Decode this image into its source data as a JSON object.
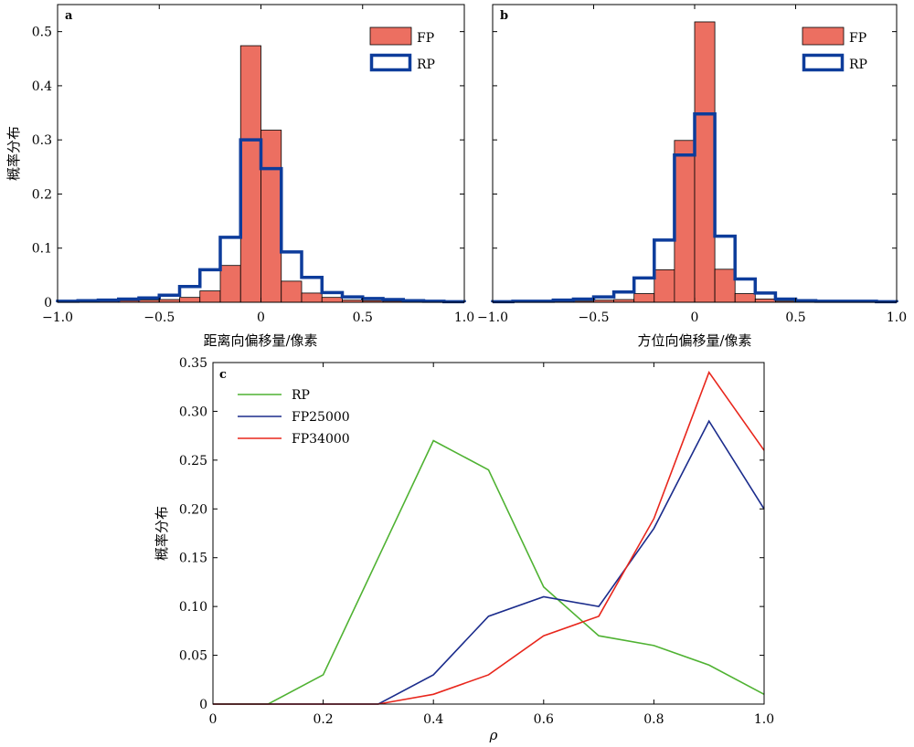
{
  "chart_data": [
    {
      "type": "bar",
      "panel_label": "a",
      "xlabel": "距离向偏移量/像素",
      "ylabel": "概率分布",
      "xlim": [
        -1.0,
        1.0
      ],
      "ylim": [
        0,
        0.55
      ],
      "xticks": [
        -1.0,
        -0.5,
        0,
        0.5,
        1.0
      ],
      "xtick_labels": [
        "−1.0",
        "−0.5",
        "0",
        "0.5",
        "1.0"
      ],
      "yticks": [
        0,
        0.1,
        0.2,
        0.3,
        0.4,
        0.5
      ],
      "ytick_labels": [
        "0",
        "0.1",
        "0.2",
        "0.3",
        "0.4",
        "0.5"
      ],
      "bin_edges": [
        -1.0,
        -0.9,
        -0.8,
        -0.7,
        -0.6,
        -0.5,
        -0.4,
        -0.3,
        -0.2,
        -0.1,
        0.0,
        0.1,
        0.2,
        0.3,
        0.4,
        0.5,
        0.6,
        0.7,
        0.8,
        0.9,
        1.0
      ],
      "series": [
        {
          "name": "FP",
          "style": "bar",
          "color": "#EC6F61",
          "values": [
            0.002,
            0.002,
            0.003,
            0.003,
            0.004,
            0.005,
            0.009,
            0.021,
            0.068,
            0.474,
            0.318,
            0.039,
            0.017,
            0.009,
            0.004,
            0.003,
            0.002,
            0.002,
            0.002,
            0.001
          ]
        },
        {
          "name": "RP",
          "style": "step",
          "color": "#0D3C9B",
          "values": [
            0.002,
            0.003,
            0.004,
            0.006,
            0.008,
            0.013,
            0.029,
            0.06,
            0.12,
            0.3,
            0.247,
            0.093,
            0.046,
            0.018,
            0.01,
            0.007,
            0.005,
            0.003,
            0.002,
            0.001
          ]
        }
      ],
      "legend": "top-right",
      "grid": false
    },
    {
      "type": "bar",
      "panel_label": "b",
      "xlabel": "方位向偏移量/像素",
      "ylabel": "",
      "xlim": [
        -1.0,
        1.0
      ],
      "ylim": [
        0,
        0.55
      ],
      "xticks": [
        -1.0,
        -0.5,
        0,
        0.5,
        1.0
      ],
      "xtick_labels": [
        "−1.0",
        "−0.5",
        "0",
        "0.5",
        "1.0"
      ],
      "bin_edges": [
        -1.0,
        -0.9,
        -0.8,
        -0.7,
        -0.6,
        -0.5,
        -0.4,
        -0.3,
        -0.2,
        -0.1,
        0.0,
        0.1,
        0.2,
        0.3,
        0.4,
        0.5,
        0.6,
        0.7,
        0.8,
        0.9,
        1.0
      ],
      "series": [
        {
          "name": "FP",
          "style": "bar",
          "color": "#EC6F61",
          "values": [
            0.001,
            0.001,
            0.001,
            0.002,
            0.002,
            0.004,
            0.005,
            0.016,
            0.06,
            0.299,
            0.518,
            0.061,
            0.016,
            0.006,
            0.002,
            0.001,
            0.001,
            0.001,
            0.001,
            0.001
          ]
        },
        {
          "name": "RP",
          "style": "step",
          "color": "#0D3C9B",
          "values": [
            0.001,
            0.002,
            0.002,
            0.004,
            0.006,
            0.01,
            0.019,
            0.045,
            0.115,
            0.272,
            0.348,
            0.122,
            0.043,
            0.017,
            0.006,
            0.003,
            0.002,
            0.002,
            0.002,
            0.001
          ]
        }
      ],
      "legend": "top-right",
      "grid": false
    },
    {
      "type": "line",
      "panel_label": "c",
      "xlabel": "ρ",
      "ylabel": "概率分布",
      "xlim": [
        0,
        1.0
      ],
      "ylim": [
        0,
        0.35
      ],
      "xticks": [
        0,
        0.2,
        0.4,
        0.6,
        0.8,
        1.0
      ],
      "xtick_labels": [
        "0",
        "0.2",
        "0.4",
        "0.6",
        "0.8",
        "1.0"
      ],
      "yticks": [
        0,
        0.05,
        0.1,
        0.15,
        0.2,
        0.25,
        0.3,
        0.35
      ],
      "ytick_labels": [
        "0",
        "0.05",
        "0.10",
        "0.15",
        "0.20",
        "0.25",
        "0.30",
        "0.35"
      ],
      "x": [
        0,
        0.1,
        0.2,
        0.3,
        0.4,
        0.5,
        0.6,
        0.7,
        0.8,
        0.9,
        1.0
      ],
      "series": [
        {
          "name": "RP",
          "color": "#4FB232",
          "values": [
            0,
            0,
            0.03,
            0.15,
            0.27,
            0.24,
            0.12,
            0.07,
            0.06,
            0.04,
            0.01
          ]
        },
        {
          "name": "FP25000",
          "color": "#1B2C8C",
          "values": [
            0,
            0,
            0,
            0,
            0.03,
            0.09,
            0.11,
            0.1,
            0.18,
            0.29,
            0.2
          ]
        },
        {
          "name": "FP34000",
          "color": "#E8261C",
          "values": [
            0,
            0,
            0,
            0,
            0.01,
            0.03,
            0.07,
            0.09,
            0.19,
            0.34,
            0.26
          ]
        }
      ],
      "legend": "top-left",
      "grid": false
    }
  ]
}
